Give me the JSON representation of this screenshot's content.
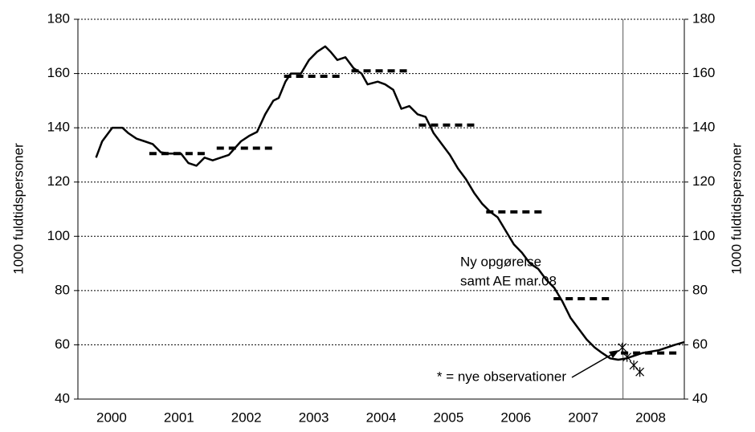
{
  "chart_data": {
    "type": "line",
    "y_label": "1000 fuldtidspersoner",
    "y2_label": "1000 fuldtidspersoner",
    "categories": [
      "2000",
      "2001",
      "2002",
      "2003",
      "2004",
      "2005",
      "2006",
      "2007",
      "2008"
    ],
    "xlim": [
      2000,
      2009
    ],
    "ylim": [
      40,
      180
    ],
    "yticks": [
      40,
      60,
      80,
      100,
      120,
      140,
      160,
      180
    ],
    "y2lim": [
      40,
      180
    ],
    "y2ticks": [
      40,
      60,
      80,
      100,
      120,
      140,
      160,
      180
    ],
    "grid": true,
    "series": [
      {
        "color": "#000000",
        "style": "solid",
        "x": [
          2000.27,
          2000.36,
          2000.51,
          2000.66,
          2000.75,
          2000.87,
          2000.99,
          2001.11,
          2001.23,
          2001.35,
          2001.53,
          2001.64,
          2001.76,
          2001.88,
          2002.0,
          2002.12,
          2002.24,
          2002.42,
          2002.54,
          2002.66,
          2002.78,
          2002.9,
          2002.98,
          2003.08,
          2003.16,
          2003.31,
          2003.43,
          2003.55,
          2003.67,
          2003.75,
          2003.85,
          2003.97,
          2004.09,
          2004.21,
          2004.3,
          2004.45,
          2004.56,
          2004.68,
          2004.8,
          2004.92,
          2005.04,
          2005.16,
          2005.28,
          2005.4,
          2005.52,
          2005.64,
          2005.76,
          2005.88,
          2006.0,
          2006.12,
          2006.23,
          2006.35,
          2006.47,
          2006.59,
          2006.71,
          2006.83,
          2006.95,
          2007.07,
          2007.19,
          2007.31,
          2007.43,
          2007.55,
          2007.67,
          2007.78,
          2007.9,
          2008.02,
          2008.14,
          2008.26,
          2008.38,
          2008.62,
          2008.86,
          2009.0
        ],
        "values": [
          129,
          135,
          140,
          140,
          138,
          136,
          135,
          134,
          131,
          130.5,
          130.5,
          127,
          126,
          129,
          128,
          129,
          130,
          135,
          137,
          138.5,
          145,
          150,
          151,
          157,
          160,
          160,
          165,
          168,
          170,
          168,
          165,
          166,
          162,
          160,
          156,
          157,
          156,
          154,
          147,
          148,
          145,
          144,
          138,
          134,
          130,
          125,
          121,
          116,
          112,
          109,
          107,
          102,
          97,
          94,
          90,
          88,
          84,
          81,
          76,
          70,
          66,
          62,
          59,
          57,
          55,
          54.5,
          55,
          56,
          57,
          58,
          60,
          61
        ]
      },
      {
        "color": "#000000",
        "style": "year-dash",
        "x": [
          2001,
          2002,
          2003,
          2004,
          2005,
          2006,
          2007,
          2008
        ],
        "values": [
          130.5,
          132.5,
          159,
          161,
          141,
          109,
          77,
          57
        ]
      },
      {
        "color": "#000000",
        "style": "asterisk",
        "x": [
          2008.08,
          2008.15,
          2008.25,
          2008.34
        ],
        "values": [
          59,
          55.5,
          52.5,
          50
        ]
      }
    ],
    "vline": 2008.09,
    "annotations": [
      {
        "lines": [
          "Ny opgørelse",
          "samt AE mar.08"
        ]
      },
      {
        "lines": [
          "* = nye observationer"
        ]
      }
    ]
  }
}
